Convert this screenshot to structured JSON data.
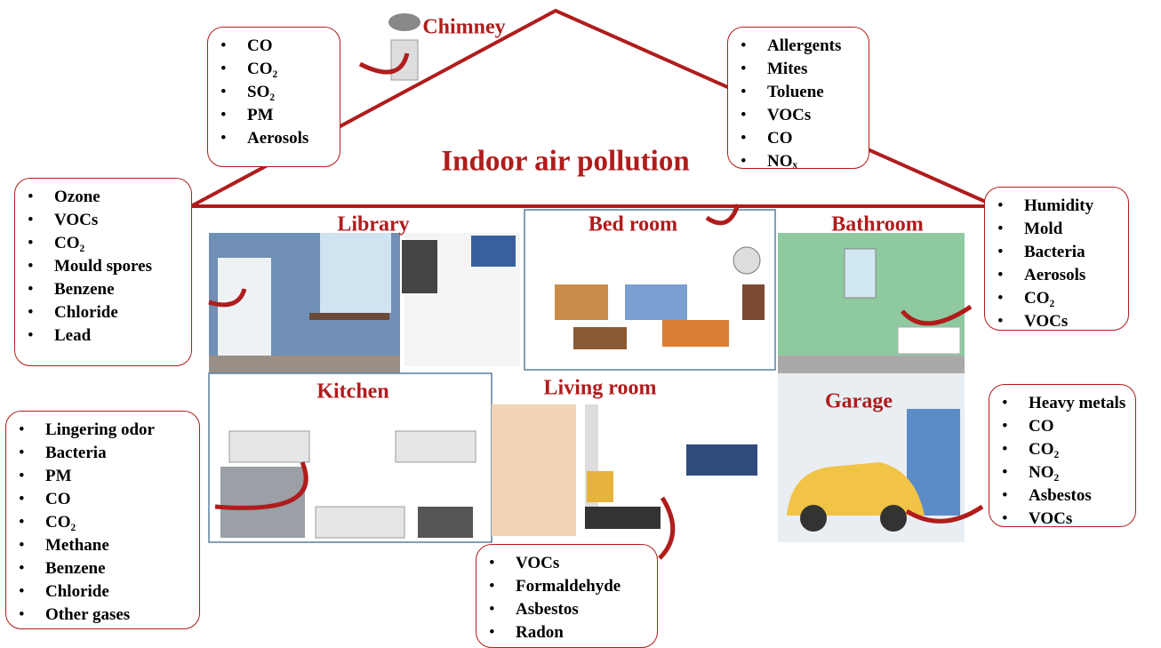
{
  "title": "Indoor air pollution",
  "chimney": {
    "label": "Chimney",
    "pollutants": [
      "CO",
      "CO₂",
      "SO₂",
      "PM",
      "Aerosols"
    ]
  },
  "house": {
    "pollutants": [
      "Allergents",
      "Mites",
      "Toluene",
      "VOCs",
      "CO",
      "NOₓ"
    ]
  },
  "rooms": [
    {
      "label": "Library",
      "pollutants": [
        "Ozone",
        "VOCs",
        "CO₂",
        "Mould spores",
        "Benzene",
        "Chloride",
        "Lead"
      ]
    },
    {
      "label": "Bed room"
    },
    {
      "label": "Bathroom",
      "pollutants": [
        "Humidity",
        "Mold",
        "Bacteria",
        "Aerosols",
        "CO₂",
        "VOCs"
      ]
    },
    {
      "label": "Kitchen",
      "pollutants": [
        "Lingering odor",
        "Bacteria",
        "PM",
        "CO",
        "CO₂",
        "Methane",
        "Benzene",
        "Chloride",
        "Other gases"
      ]
    },
    {
      "label": "Living room",
      "pollutants": [
        "VOCs",
        "Formaldehyde",
        "Asbestos",
        "Radon"
      ]
    },
    {
      "label": "Garage",
      "pollutants": [
        "Heavy metals",
        "CO",
        "CO₂",
        "NO₂",
        "Asbestos",
        "VOCs"
      ]
    }
  ]
}
